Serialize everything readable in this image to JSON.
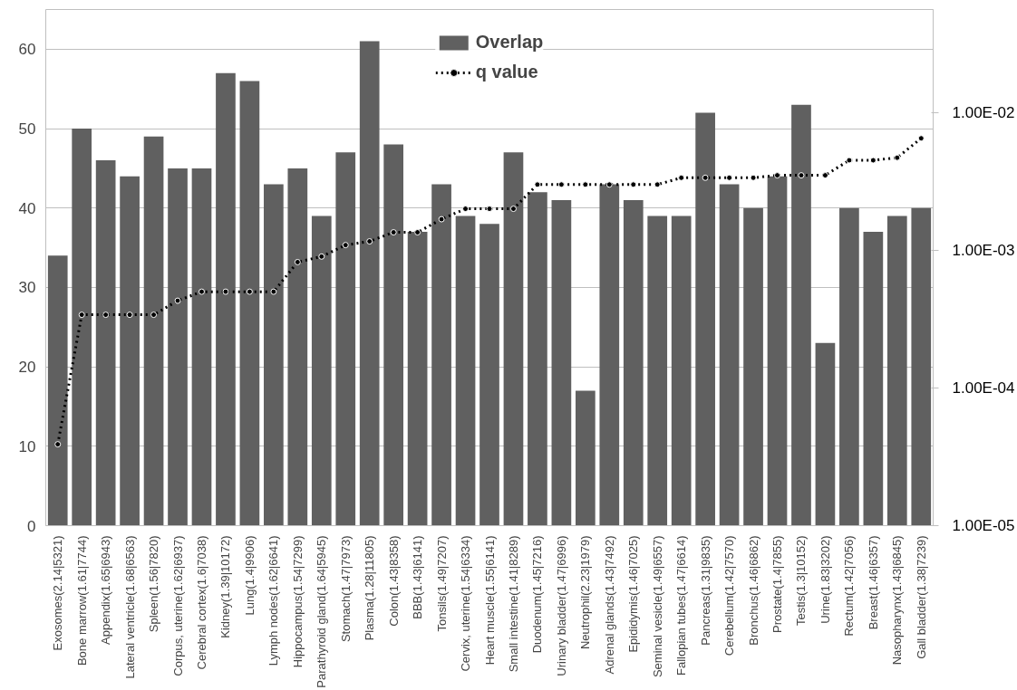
{
  "chart_data": {
    "type": "bar",
    "categories": [
      "Exosomes(2.14|5321)",
      "Bone marrow(1.61|7744)",
      "Appendix(1.65|6943)",
      "Lateral ventricle(1.68|6563)",
      "Spleen(1.56|7820)",
      "Corpus, uterine(1.62|6937)",
      "Cerebral cortex(1.6|7038)",
      "Kidney(1.39|10172)",
      "Lung(1.4|9906)",
      "Lymph nodes(1.62|6641)",
      "Hippocampus(1.54|7299)",
      "Parathyroid gland(1.64|5945)",
      "Stomach(1.47|7973)",
      "Plasma(1.28|11805)",
      "Colon(1.43|8358)",
      "BBB(1.43|6141)",
      "Tonsils(1.49|7207)",
      "Cervix, uterine(1.54|6334)",
      "Heart muscle(1.55|6141)",
      "Small intestine(1.41|8289)",
      "Duodenum(1.45|7216)",
      "Urinary bladder(1.47|6996)",
      "Neutrophil(2.23|1979)",
      "Adrenal glands(1.43|7492)",
      "Epididymis(1.46|7025)",
      "Seminal vesicle(1.49|6557)",
      "Fallopian tubes(1.47|6614)",
      "Pancreas(1.31|9835)",
      "Cerebellum(1.42|7570)",
      "Bronchus(1.46|6862)",
      "Prostate(1.4|7855)",
      "Testis(1.3|10152)",
      "Urine(1.83|3202)",
      "Rectum(1.42|7056)",
      "Breast(1.46|6357)",
      "Nasopharynx(1.43|6845)",
      "Gall bladder(1.38|7239)"
    ],
    "series": [
      {
        "name": "Overlap",
        "color": "#606060",
        "values": [
          34,
          50,
          46,
          44,
          49,
          45,
          45,
          57,
          56,
          43,
          45,
          39,
          47,
          61,
          48,
          37,
          43,
          39,
          38,
          47,
          42,
          41,
          17,
          43,
          41,
          39,
          39,
          52,
          43,
          40,
          44,
          53,
          23,
          40,
          37,
          39,
          40
        ]
      },
      {
        "name": "q value",
        "type": "line",
        "axis": "y2",
        "color": "#000000",
        "marker": "circle",
        "line_style": "dotted",
        "values": [
          3.9e-05,
          0.00034,
          0.00034,
          0.00034,
          0.00034,
          0.00043,
          0.0005,
          0.0005,
          0.0005,
          0.0005,
          0.00082,
          0.0009,
          0.00109,
          0.00116,
          0.00135,
          0.00135,
          0.00168,
          0.002,
          0.002,
          0.002,
          0.003,
          0.003,
          0.003,
          0.003,
          0.003,
          0.003,
          0.00336,
          0.00336,
          0.00336,
          0.00336,
          0.0035,
          0.0035,
          0.0035,
          0.0045,
          0.0045,
          0.0047,
          0.0065
        ]
      }
    ],
    "ylim": [
      0,
      65
    ],
    "yticks": [
      0,
      10,
      20,
      30,
      40,
      50,
      60
    ],
    "log": "y2",
    "y2lim": [
      1e-05,
      0.056
    ],
    "y2ticks": [
      {
        "value": 1e-05,
        "label": "1.00E-05"
      },
      {
        "value": 0.0001,
        "label": "1.00E-04"
      },
      {
        "value": 0.001,
        "label": "1.00E-03"
      },
      {
        "value": 0.01,
        "label": "1.00E-02"
      }
    ],
    "grid": "y",
    "legend": "top"
  }
}
